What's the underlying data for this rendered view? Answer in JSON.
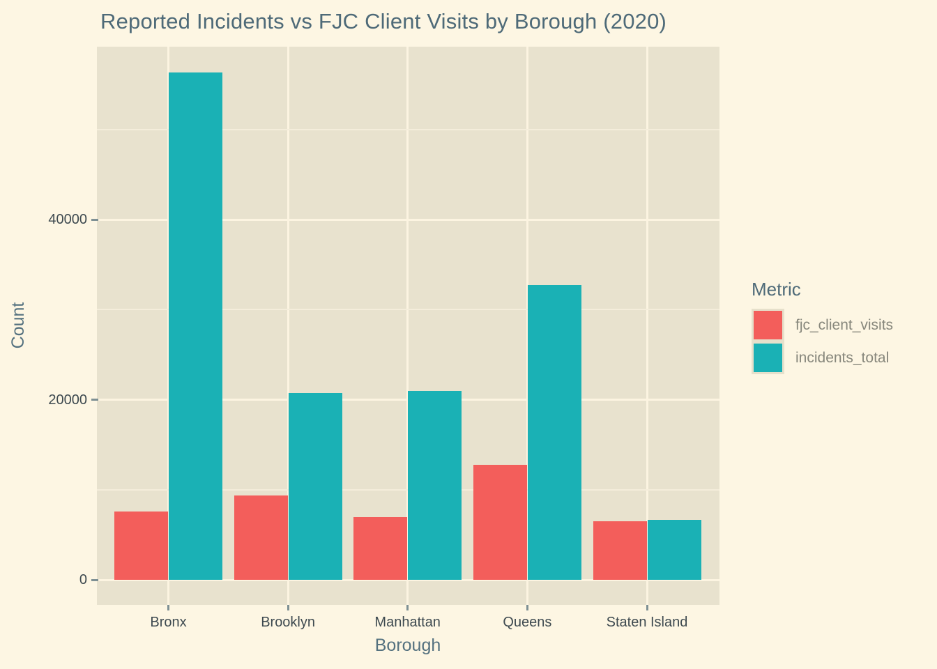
{
  "colors": {
    "background": "#FDF6E3",
    "panel": "#E8E2CE",
    "grid_major": "#FCF4E1",
    "grid_minor": "#F4EDDB",
    "bar_fjc_client_visits": "#F35E5B",
    "bar_incidents_total": "#1AB1B5",
    "title_text": "#4E6A78",
    "axis_title_text": "#54717F",
    "tick_label_text": "#3E4A50",
    "legend_label_text": "#87877C",
    "tick_mark": "#7E9094",
    "legend_key_border": "#E6E0CB"
  },
  "chart_data": {
    "type": "bar",
    "title": "Reported Incidents vs FJC Client Visits by Borough (2020)",
    "xlabel": "Borough",
    "ylabel": "Count",
    "categories": [
      "Bronx",
      "Brooklyn",
      "Manhattan",
      "Queens",
      "Staten Island"
    ],
    "series": [
      {
        "name": "fjc_client_visits",
        "color": "#F35E5B",
        "values": [
          7600,
          9400,
          7000,
          12800,
          6500
        ]
      },
      {
        "name": "incidents_total",
        "color": "#1AB1B5",
        "values": [
          56300,
          20700,
          21000,
          32700,
          6650
        ]
      }
    ],
    "ylim": [
      0,
      58500
    ],
    "yticks": [
      0,
      20000,
      40000
    ],
    "yticks_minor": [
      10000,
      30000,
      50000
    ],
    "grid": true,
    "legend_title": "Metric",
    "legend_position": "right",
    "bar_layout": "dodged"
  }
}
